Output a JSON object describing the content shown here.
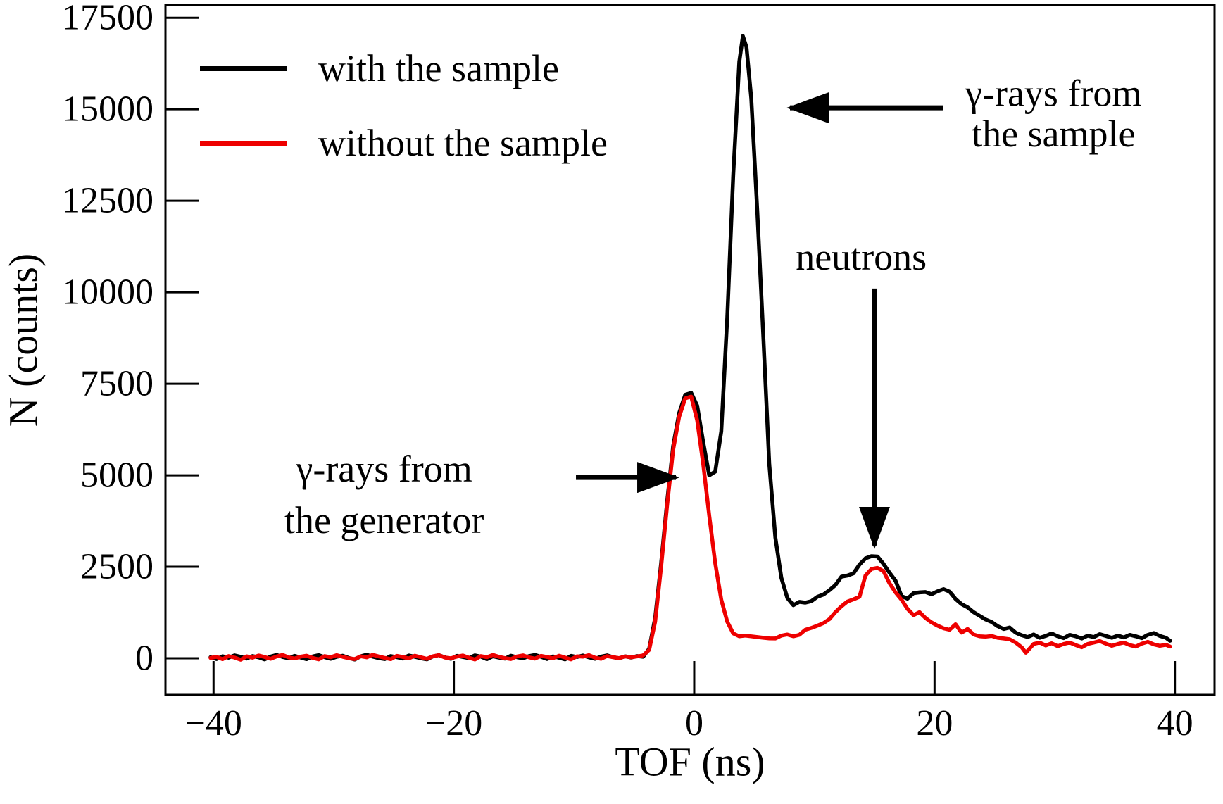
{
  "figure": {
    "background": "#ffffff",
    "frame_color": "#000000"
  },
  "chart_data": {
    "type": "line",
    "title": "",
    "xlabel": "TOF (ns)",
    "ylabel": "N (counts)",
    "xlim": [
      -44,
      43.3
    ],
    "ylim": [
      -1000,
      17850
    ],
    "grid": false,
    "legend_position": "upper left",
    "xticks": {
      "values": [
        -40,
        -20,
        0,
        20,
        40
      ],
      "labels": [
        "−40",
        "−20",
        "0",
        "20",
        "40"
      ]
    },
    "yticks": {
      "values": [
        0,
        2500,
        5000,
        7500,
        10000,
        12500,
        15000,
        17500
      ],
      "labels": [
        "0",
        "2500",
        "5000",
        "7500",
        "10000",
        "12500",
        "15000",
        "17500"
      ]
    },
    "series": [
      {
        "name": "with the sample",
        "color": "#000000",
        "baseline": {
          "x_start": -40.25,
          "x_step": 0.5,
          "values": [
            30,
            -20,
            55,
            15,
            80,
            40,
            -10,
            60,
            25,
            -30,
            45,
            90,
            35,
            0,
            65,
            20,
            -25,
            50,
            85,
            30,
            -15,
            40,
            70,
            10,
            -35,
            55,
            95,
            45,
            5,
            -20,
            60,
            30,
            -10,
            75,
            40,
            0,
            -30,
            50,
            85,
            25,
            -15,
            65,
            35,
            5,
            80,
            45,
            -25,
            55,
            20,
            -10,
            70,
            30,
            0,
            60,
            90,
            40,
            -20,
            50,
            15,
            -30,
            65,
            35,
            75,
            25,
            -15,
            45,
            80,
            30,
            0,
            55,
            20
          ]
        },
        "points": [
          [
            -4.75,
            60
          ],
          [
            -4.25,
            40
          ],
          [
            -3.75,
            260
          ],
          [
            -3.25,
            1100
          ],
          [
            -2.75,
            2600
          ],
          [
            -2.25,
            4300
          ],
          [
            -1.75,
            5800
          ],
          [
            -1.25,
            6700
          ],
          [
            -0.75,
            7200
          ],
          [
            -0.25,
            7250
          ],
          [
            0.25,
            6900
          ],
          [
            0.75,
            5900
          ],
          [
            1.25,
            5000
          ],
          [
            1.75,
            5100
          ],
          [
            2.25,
            6200
          ],
          [
            2.75,
            9300
          ],
          [
            3.25,
            13200
          ],
          [
            3.75,
            16300
          ],
          [
            4.05,
            17000
          ],
          [
            4.35,
            16700
          ],
          [
            4.75,
            15300
          ],
          [
            5.25,
            12200
          ],
          [
            5.75,
            8800
          ],
          [
            6.25,
            5300
          ],
          [
            6.75,
            3300
          ],
          [
            7.25,
            2200
          ],
          [
            7.75,
            1650
          ],
          [
            8.25,
            1450
          ],
          [
            8.75,
            1540
          ],
          [
            9.25,
            1520
          ],
          [
            9.75,
            1560
          ],
          [
            10.25,
            1680
          ],
          [
            10.75,
            1740
          ],
          [
            11.25,
            1860
          ],
          [
            11.75,
            2000
          ],
          [
            12.25,
            2230
          ],
          [
            12.75,
            2260
          ],
          [
            13.25,
            2320
          ],
          [
            13.75,
            2560
          ],
          [
            14.25,
            2730
          ],
          [
            14.75,
            2790
          ],
          [
            15.25,
            2780
          ],
          [
            15.75,
            2580
          ],
          [
            16.25,
            2340
          ],
          [
            16.75,
            2120
          ],
          [
            17.25,
            1700
          ],
          [
            17.75,
            1630
          ],
          [
            18.25,
            1780
          ],
          [
            18.75,
            1800
          ],
          [
            19.25,
            1810
          ],
          [
            19.75,
            1750
          ],
          [
            20.25,
            1830
          ],
          [
            20.75,
            1890
          ],
          [
            21.25,
            1820
          ],
          [
            21.75,
            1620
          ],
          [
            22.25,
            1480
          ],
          [
            22.75,
            1390
          ],
          [
            23.25,
            1260
          ],
          [
            23.75,
            1160
          ],
          [
            24.25,
            1060
          ],
          [
            24.75,
            990
          ],
          [
            25.25,
            880
          ],
          [
            25.75,
            800
          ],
          [
            26.25,
            840
          ],
          [
            26.75,
            700
          ],
          [
            27.25,
            630
          ],
          [
            27.75,
            580
          ],
          [
            28.25,
            650
          ],
          [
            28.75,
            560
          ],
          [
            29.25,
            610
          ],
          [
            29.75,
            680
          ],
          [
            30.25,
            600
          ],
          [
            30.75,
            550
          ],
          [
            31.25,
            640
          ],
          [
            31.75,
            600
          ],
          [
            32.25,
            540
          ],
          [
            32.75,
            620
          ],
          [
            33.25,
            580
          ],
          [
            33.75,
            660
          ],
          [
            34.25,
            610
          ],
          [
            34.75,
            560
          ],
          [
            35.25,
            620
          ],
          [
            35.75,
            570
          ],
          [
            36.25,
            640
          ],
          [
            36.75,
            600
          ],
          [
            37.25,
            550
          ],
          [
            37.75,
            640
          ],
          [
            38.25,
            690
          ],
          [
            38.75,
            610
          ],
          [
            39.25,
            560
          ],
          [
            39.6,
            480
          ]
        ]
      },
      {
        "name": "without the sample",
        "color": "#ee0000",
        "baseline": {
          "x_start": -40.25,
          "x_step": 0.5,
          "values": [
            10,
            40,
            -25,
            60,
            20,
            -40,
            55,
            15,
            75,
            35,
            -15,
            50,
            90,
            25,
            -5,
            45,
            70,
            10,
            -30,
            60,
            30,
            85,
            40,
            0,
            -20,
            55,
            25,
            95,
            50,
            10,
            -25,
            65,
            35,
            -5,
            70,
            30,
            -15,
            55,
            85,
            20,
            0,
            45,
            75,
            15,
            -35,
            60,
            30,
            90,
            40,
            5,
            -20,
            50,
            80,
            25,
            -10,
            65,
            35,
            0,
            70,
            20,
            -30,
            55,
            45,
            85,
            15,
            -15,
            60,
            30,
            5,
            50,
            25
          ]
        },
        "points": [
          [
            -4.75,
            50
          ],
          [
            -4.25,
            80
          ],
          [
            -3.75,
            230
          ],
          [
            -3.25,
            1000
          ],
          [
            -2.75,
            2500
          ],
          [
            -2.25,
            4200
          ],
          [
            -1.75,
            5700
          ],
          [
            -1.25,
            6600
          ],
          [
            -0.75,
            7100
          ],
          [
            -0.25,
            7150
          ],
          [
            0.25,
            6500
          ],
          [
            0.75,
            5300
          ],
          [
            1.25,
            3900
          ],
          [
            1.75,
            2600
          ],
          [
            2.25,
            1600
          ],
          [
            2.75,
            1000
          ],
          [
            3.25,
            680
          ],
          [
            3.75,
            600
          ],
          [
            4.25,
            620
          ],
          [
            4.75,
            600
          ],
          [
            5.25,
            580
          ],
          [
            5.75,
            560
          ],
          [
            6.25,
            545
          ],
          [
            6.75,
            540
          ],
          [
            7.25,
            620
          ],
          [
            7.75,
            650
          ],
          [
            8.25,
            600
          ],
          [
            8.75,
            640
          ],
          [
            9.25,
            780
          ],
          [
            9.75,
            830
          ],
          [
            10.25,
            890
          ],
          [
            10.75,
            960
          ],
          [
            11.25,
            1070
          ],
          [
            11.75,
            1260
          ],
          [
            12.25,
            1420
          ],
          [
            12.75,
            1550
          ],
          [
            13.25,
            1610
          ],
          [
            13.75,
            1680
          ],
          [
            14.25,
            2260
          ],
          [
            14.75,
            2440
          ],
          [
            15.25,
            2470
          ],
          [
            15.75,
            2380
          ],
          [
            16.25,
            2050
          ],
          [
            16.75,
            1800
          ],
          [
            17.25,
            1600
          ],
          [
            17.75,
            1350
          ],
          [
            18.25,
            1180
          ],
          [
            18.75,
            1260
          ],
          [
            19.25,
            1100
          ],
          [
            19.75,
            980
          ],
          [
            20.25,
            890
          ],
          [
            20.75,
            820
          ],
          [
            21.25,
            780
          ],
          [
            21.75,
            930
          ],
          [
            22.25,
            700
          ],
          [
            22.75,
            800
          ],
          [
            23.25,
            650
          ],
          [
            23.75,
            600
          ],
          [
            24.25,
            590
          ],
          [
            24.75,
            610
          ],
          [
            25.25,
            560
          ],
          [
            25.75,
            540
          ],
          [
            26.25,
            520
          ],
          [
            26.75,
            430
          ],
          [
            27.25,
            300
          ],
          [
            27.6,
            150
          ],
          [
            28.25,
            390
          ],
          [
            28.75,
            430
          ],
          [
            29.25,
            350
          ],
          [
            29.75,
            410
          ],
          [
            30.25,
            330
          ],
          [
            30.75,
            390
          ],
          [
            31.25,
            430
          ],
          [
            31.75,
            360
          ],
          [
            32.25,
            300
          ],
          [
            32.75,
            390
          ],
          [
            33.25,
            430
          ],
          [
            33.75,
            470
          ],
          [
            34.25,
            400
          ],
          [
            34.75,
            340
          ],
          [
            35.25,
            390
          ],
          [
            35.75,
            430
          ],
          [
            36.25,
            360
          ],
          [
            36.75,
            320
          ],
          [
            37.25,
            400
          ],
          [
            37.75,
            450
          ],
          [
            38.25,
            380
          ],
          [
            38.75,
            340
          ],
          [
            39.25,
            370
          ],
          [
            39.6,
            320
          ]
        ]
      }
    ],
    "annotations": [
      {
        "name": "gamma-rays-from-the-sample",
        "lines": [
          "γ-rays from",
          "the sample"
        ],
        "x": 29.9,
        "line_y": [
          15440,
          14330
        ]
      },
      {
        "name": "neutrons",
        "lines": [
          "neutrons"
        ],
        "x": 13.9,
        "line_y": [
          10960
        ]
      },
      {
        "name": "gamma-rays-from-the-generator",
        "lines": [
          "γ-rays from",
          "the generator"
        ],
        "x": -25.8,
        "line_y": [
          5170,
          3770
        ]
      }
    ],
    "arrows": [
      {
        "name": "sample-arrow",
        "from": [
          20.7,
          15040
        ],
        "to": [
          7.97,
          15040
        ]
      },
      {
        "name": "neutrons-arrow",
        "from": [
          15.0,
          10100
        ],
        "to": [
          15.0,
          3080
        ]
      },
      {
        "name": "generator-arrow",
        "from": [
          -9.84,
          4940
        ],
        "to": [
          -1.52,
          4940
        ]
      }
    ]
  }
}
